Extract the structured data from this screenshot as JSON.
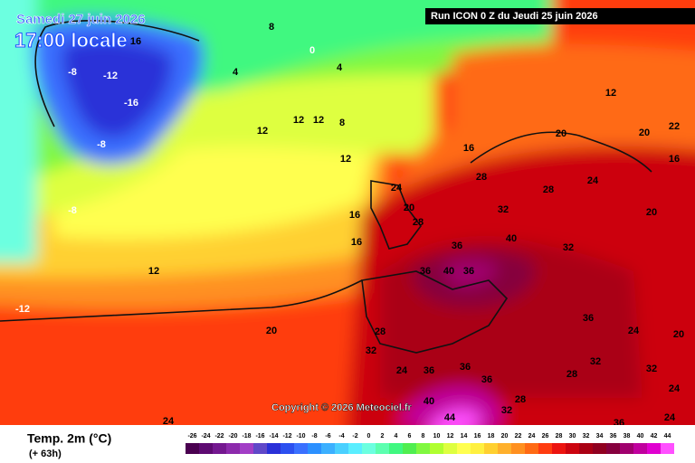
{
  "header": {
    "date": "Samedi 27 juin 2026",
    "time": "17:00 locale",
    "run": "Run ICON 0 Z du Jeudi 25 juin 2026"
  },
  "copyright": "Copyright © 2026 Meteociel.fr",
  "legend": {
    "title": "Temp. 2m (°C)",
    "lead": "(+ 63h)",
    "scale": [
      {
        "value": -26,
        "color": "#4a0050"
      },
      {
        "value": -24,
        "color": "#5e0a72"
      },
      {
        "value": -22,
        "color": "#741890"
      },
      {
        "value": -20,
        "color": "#8c2aac"
      },
      {
        "value": -18,
        "color": "#a23ec6"
      },
      {
        "value": -16,
        "color": "#6048c8"
      },
      {
        "value": -14,
        "color": "#2a30d8"
      },
      {
        "value": -12,
        "color": "#2c50f0"
      },
      {
        "value": -10,
        "color": "#3a70ff"
      },
      {
        "value": -8,
        "color": "#2c90ff"
      },
      {
        "value": -6,
        "color": "#3cb0ff"
      },
      {
        "value": -4,
        "color": "#4ad0ff"
      },
      {
        "value": -2,
        "color": "#5aeeff"
      },
      {
        "value": 0,
        "color": "#6cffe0"
      },
      {
        "value": 2,
        "color": "#5cffb0"
      },
      {
        "value": 4,
        "color": "#40f880"
      },
      {
        "value": 6,
        "color": "#50ee50"
      },
      {
        "value": 8,
        "color": "#80f840"
      },
      {
        "value": 10,
        "color": "#b0ff30"
      },
      {
        "value": 12,
        "color": "#deff40"
      },
      {
        "value": 14,
        "color": "#ffff50"
      },
      {
        "value": 16,
        "color": "#fff040"
      },
      {
        "value": 18,
        "color": "#ffd030"
      },
      {
        "value": 20,
        "color": "#ffb02c"
      },
      {
        "value": 22,
        "color": "#ff9020"
      },
      {
        "value": 24,
        "color": "#ff6a14"
      },
      {
        "value": 26,
        "color": "#ff3c10"
      },
      {
        "value": 28,
        "color": "#ec1410"
      },
      {
        "value": 30,
        "color": "#cc0410"
      },
      {
        "value": 32,
        "color": "#aa0014"
      },
      {
        "value": 34,
        "color": "#900020"
      },
      {
        "value": 36,
        "color": "#86003e"
      },
      {
        "value": 38,
        "color": "#a0006e"
      },
      {
        "value": 40,
        "color": "#c0009e"
      },
      {
        "value": 42,
        "color": "#e000d0"
      },
      {
        "value": 44,
        "color": "#ff50ff"
      }
    ]
  },
  "map_labels": [
    16,
    -8,
    -12,
    -16,
    -8,
    4,
    0,
    4,
    8,
    12,
    12,
    12,
    8,
    12,
    16,
    20,
    20,
    16,
    22,
    12,
    -8,
    12,
    -12,
    20,
    24,
    24,
    20,
    16,
    16,
    28,
    36,
    40,
    32,
    36,
    40,
    36,
    28,
    32,
    24,
    36,
    36,
    36,
    40,
    44,
    28,
    32,
    28,
    32,
    36,
    24,
    20,
    32,
    24,
    28,
    32,
    28,
    24,
    20,
    24,
    36
  ]
}
